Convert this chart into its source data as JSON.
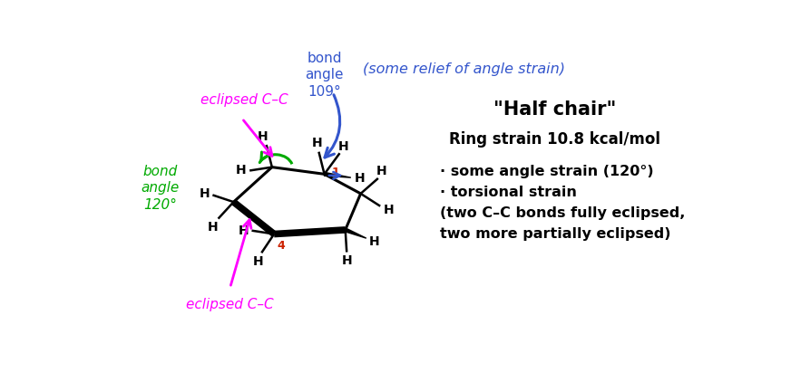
{
  "title": "\"Half chair\"",
  "ring_strain": "Ring strain 10.8 kcal/mol",
  "bullet1": "· some angle strain (120°)",
  "bullet2": "· torsional strain",
  "bullet3": "(two C–C bonds fully eclipsed,",
  "bullet4": "two more partially eclipsed)",
  "blue_label": "bond\nangle\n109°",
  "green_label": "bond\nangle\n120°",
  "relief_label": "(some relief of angle strain)",
  "eclipsed_top": "eclipsed C–C",
  "eclipsed_bottom": "eclipsed C–C",
  "bg_color": "#ffffff",
  "magenta": "#ff00ff",
  "green": "#00aa00",
  "blue_arrow_color": "#3355cc",
  "red": "#cc2200",
  "black": "#000000",
  "C1": [
    3.2,
    2.38
  ],
  "C2": [
    3.72,
    2.1
  ],
  "C3": [
    3.5,
    1.58
  ],
  "C4": [
    2.48,
    1.52
  ],
  "C5": [
    1.9,
    1.98
  ],
  "C6": [
    2.45,
    2.48
  ]
}
